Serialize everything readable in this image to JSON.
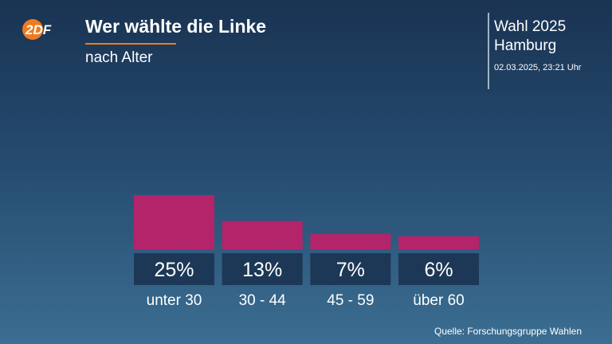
{
  "header": {
    "logo_text": "2DF",
    "title": "Wer wählte die Linke",
    "subtitle": "nach Alter",
    "election": "Wahl 2025",
    "region": "Hamburg",
    "timestamp": "02.03.2025, 23:21 Uhr"
  },
  "colors": {
    "bar": "#b3246a",
    "label_box": "#1d3856",
    "accent": "#f07a1e"
  },
  "chart_data": {
    "type": "bar",
    "categories": [
      "unter 30",
      "30 - 44",
      "45 - 59",
      "über 60"
    ],
    "values": [
      25,
      13,
      7,
      6
    ],
    "value_labels": [
      "25%",
      "13%",
      "7%",
      "6%"
    ],
    "ylim": [
      0,
      25
    ],
    "grid": false
  },
  "footer": {
    "source": "Quelle: Forschungsgruppe Wahlen"
  }
}
